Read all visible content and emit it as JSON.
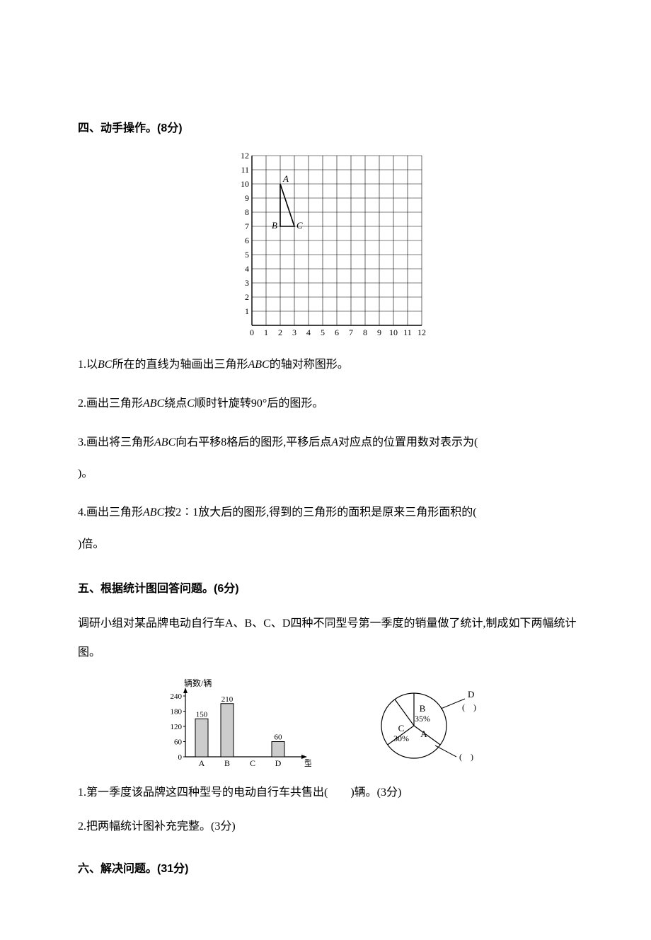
{
  "section4": {
    "title": "四、动手操作。(8分)",
    "grid": {
      "x_ticks": [
        "0",
        "1",
        "2",
        "3",
        "4",
        "5",
        "6",
        "7",
        "8",
        "9",
        "10",
        "11",
        "12"
      ],
      "y_ticks": [
        "1",
        "2",
        "3",
        "4",
        "5",
        "6",
        "7",
        "8",
        "9",
        "10",
        "11",
        "12"
      ],
      "cell": 20,
      "cols": 12,
      "rows": 12,
      "points": {
        "A": {
          "x": 2,
          "y": 10,
          "label": "A"
        },
        "B": {
          "x": 2,
          "y": 7,
          "label": "B"
        },
        "C": {
          "x": 3,
          "y": 7,
          "label": "C"
        }
      },
      "line_color": "#000000",
      "bg_color": "#ffffff"
    },
    "q1_pre": "1.以",
    "q1_bc": "BC",
    "q1_mid": "所在的直线为轴画出三角形",
    "q1_abc": "ABC",
    "q1_post": "的轴对称图形。",
    "q2_pre": "2.画出三角形",
    "q2_abc": "ABC",
    "q2_mid": "绕点",
    "q2_c": "C",
    "q2_post": "顺时针旋转90°后的图形。",
    "q3_pre": "3.画出将三角形",
    "q3_abc": "ABC",
    "q3_mid": "向右平移8格后的图形,平移后点",
    "q3_a": "A",
    "q3_post1": "对应点的位置用数对表示为(　",
    "q3_post2": ")。",
    "q4_pre": "4.画出三角形",
    "q4_abc": "ABC",
    "q4_mid": "按2∶1放大后的图形,得到的三角形的面积是原来三角形面积的(　",
    "q4_post": ")倍。"
  },
  "section5": {
    "title": "五、根据统计图回答问题。(6分)",
    "intro": "调研小组对某品牌电动自行车A、B、C、D四种不同型号第一季度的销量做了统计,制成如下两幅统计图。",
    "bar_chart": {
      "y_label": "辆数/辆",
      "x_label": "型号",
      "y_ticks": [
        0,
        60,
        120,
        180,
        240
      ],
      "categories": [
        "A",
        "B",
        "C",
        "D"
      ],
      "values": {
        "A": 150,
        "B": 210,
        "C": null,
        "D": 60
      },
      "value_labels": {
        "A": "150",
        "B": "210",
        "D": "60"
      },
      "ymax": 240,
      "bar_fill": "#cccccc",
      "bar_stroke": "#000000",
      "axis_color": "#000000"
    },
    "pie_chart": {
      "slices": [
        {
          "label": "B",
          "value_text": "35%",
          "angle": 126
        },
        {
          "label": "C",
          "value_text": "30%",
          "angle": 108
        },
        {
          "label": "A",
          "value_text": "(　)",
          "angle": 90
        },
        {
          "label": "D",
          "value_text": "(　)",
          "angle": 36
        }
      ],
      "stroke": "#000000",
      "fill": "#ffffff"
    },
    "q1": "1.第一季度该品牌这四种型号的电动自行车共售出(　　)辆。(3分)",
    "q2": "2.把两幅统计图补充完整。(3分)"
  },
  "section6": {
    "title": "六、解决问题。(31分)"
  }
}
